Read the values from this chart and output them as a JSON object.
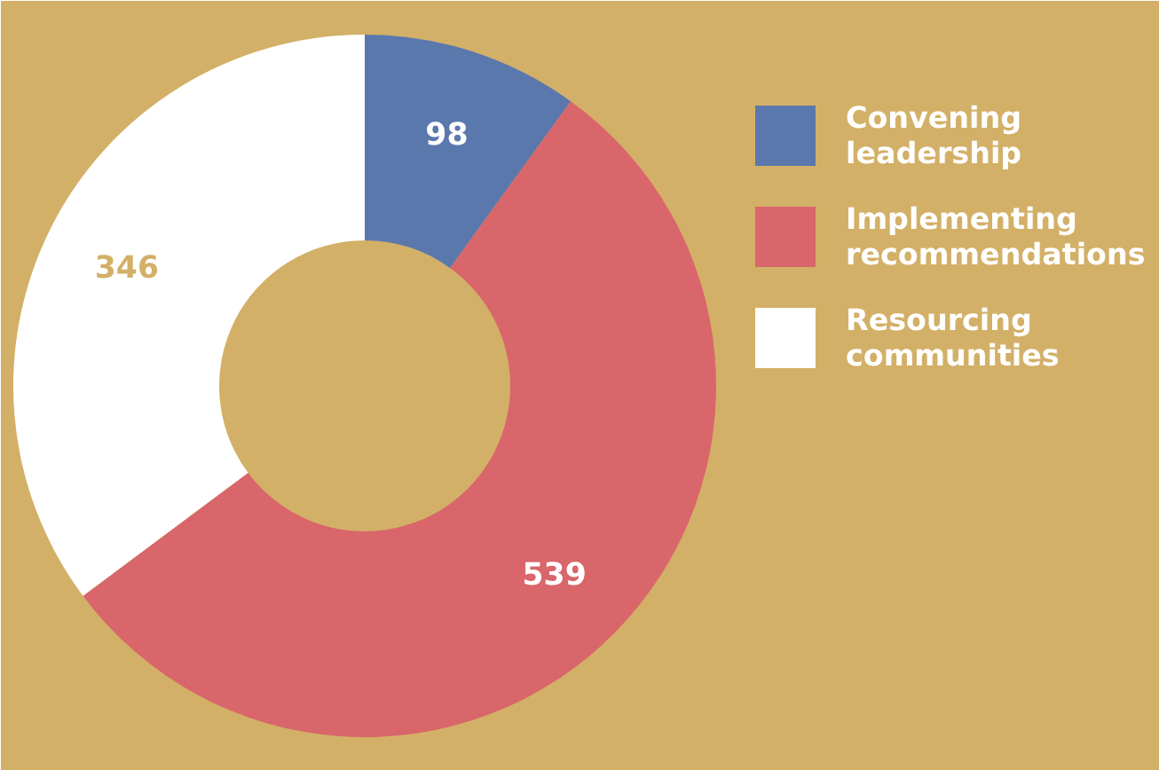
{
  "chart_data": {
    "type": "donut",
    "categories": [
      "Convening leadership",
      "Implementing recommendations",
      "Resourcing communities"
    ],
    "values": [
      98,
      539,
      346
    ],
    "colors": [
      "#5b78ad",
      "#d9666a",
      "#ffffff"
    ],
    "data_labels": true,
    "legend": "right"
  }
}
